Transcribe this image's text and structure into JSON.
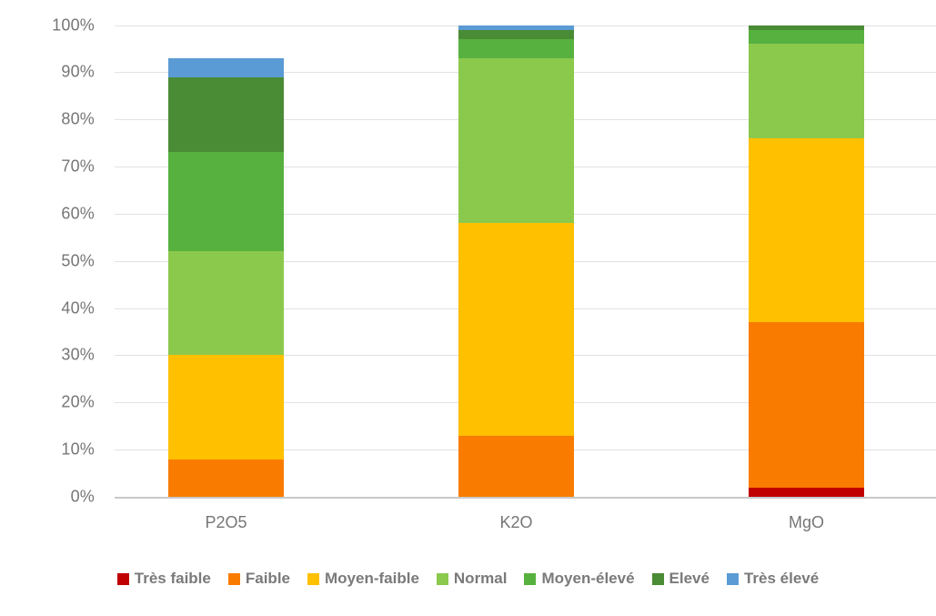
{
  "chart_data": {
    "type": "bar",
    "subtype": "stacked-percent-columns",
    "title": "",
    "xlabel": "",
    "ylabel": "",
    "ylim": [
      0,
      100
    ],
    "grid": true,
    "legend_position": "bottom",
    "categories": [
      "P2O5",
      "K2O",
      "MgO"
    ],
    "y_ticks": [
      "0%",
      "10%",
      "20%",
      "30%",
      "40%",
      "50%",
      "60%",
      "70%",
      "80%",
      "90%",
      "100%"
    ],
    "series": [
      {
        "name": "Très faible",
        "color": "#c00000",
        "values": [
          0,
          0,
          2
        ]
      },
      {
        "name": "Faible",
        "color": "#f97c00",
        "values": [
          8,
          13,
          35
        ]
      },
      {
        "name": "Moyen-faible",
        "color": "#ffc000",
        "values": [
          22,
          45,
          39
        ]
      },
      {
        "name": "Normal",
        "color": "#8bc94d",
        "values": [
          22,
          35,
          20
        ]
      },
      {
        "name": "Moyen-élevé",
        "color": "#56b13f",
        "values": [
          21,
          4,
          3
        ]
      },
      {
        "name": "Elevé",
        "color": "#4a8b35",
        "values": [
          16,
          2,
          1
        ]
      },
      {
        "name": "Très élevé",
        "color": "#5b9bd5",
        "values": [
          4,
          1,
          0
        ]
      }
    ],
    "bar_totals": [
      93,
      100,
      100
    ]
  }
}
